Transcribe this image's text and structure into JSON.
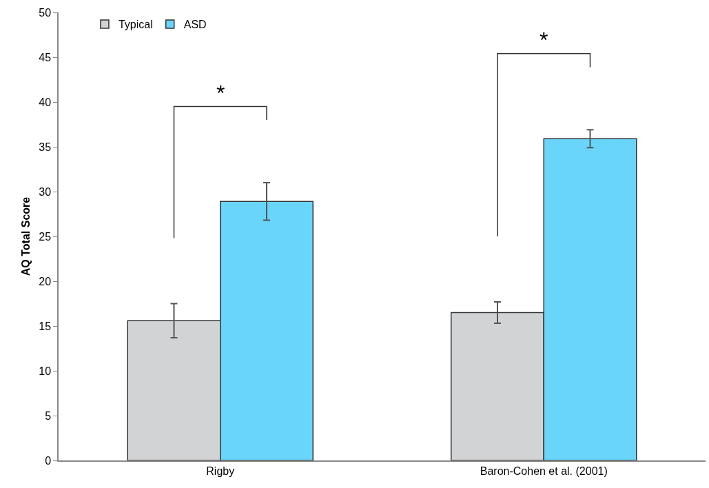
{
  "chart_data": {
    "type": "bar",
    "ylabel": "AQ Total Score",
    "categories": [
      "Rigby",
      "Baron-Cohen et al. (2001)"
    ],
    "series": [
      {
        "name": "Typical",
        "color": "#d1d3d4",
        "values": [
          15.6,
          16.5
        ],
        "errors": [
          1.9,
          1.2
        ]
      },
      {
        "name": "ASD",
        "color": "#6ad5fb",
        "values": [
          28.9,
          35.9
        ],
        "errors": [
          2.1,
          1.0
        ]
      }
    ],
    "ylim": [
      0,
      50
    ],
    "yticks": [
      0,
      5,
      10,
      15,
      20,
      25,
      30,
      35,
      40,
      45,
      50
    ],
    "grid": false,
    "legend": "top left",
    "annotations": [
      "*",
      "*"
    ]
  }
}
